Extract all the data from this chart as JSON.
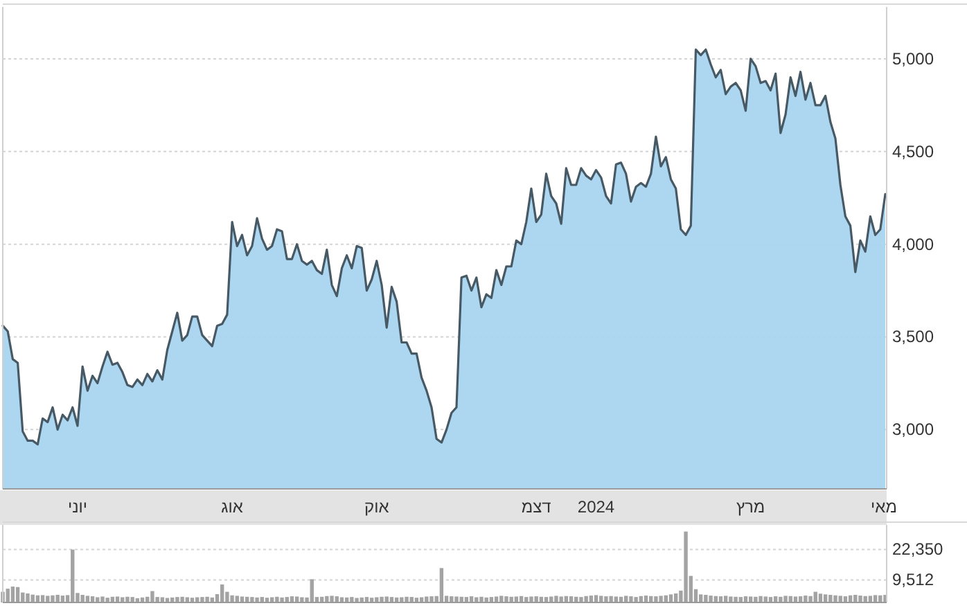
{
  "chart_data": [
    {
      "type": "area",
      "ylim": [
        2680,
        5280
      ],
      "yticks": [
        {
          "value": 3000,
          "label": "3,000"
        },
        {
          "value": 3500,
          "label": "3,500"
        },
        {
          "value": 4000,
          "label": "4,000"
        },
        {
          "value": 4500,
          "label": "4,500"
        },
        {
          "value": 5000,
          "label": "5,000"
        }
      ],
      "categories": [
        null,
        null,
        null,
        null,
        null,
        null,
        null,
        null,
        null,
        null,
        null,
        null,
        null,
        null,
        null,
        "יוני",
        null,
        null,
        null,
        null,
        null,
        null,
        null,
        null,
        null,
        null,
        null,
        null,
        null,
        null,
        null,
        null,
        null,
        null,
        null,
        null,
        null,
        null,
        null,
        null,
        null,
        null,
        null,
        null,
        null,
        null,
        "אוג",
        null,
        null,
        null,
        null,
        null,
        null,
        null,
        null,
        null,
        null,
        null,
        null,
        null,
        null,
        null,
        null,
        null,
        null,
        null,
        null,
        null,
        null,
        null,
        null,
        null,
        null,
        null,
        null,
        "אוק",
        null,
        null,
        null,
        null,
        null,
        null,
        null,
        null,
        null,
        null,
        null,
        null,
        null,
        null,
        null,
        null,
        null,
        null,
        null,
        null,
        null,
        null,
        null,
        null,
        null,
        null,
        null,
        null,
        null,
        null,
        null,
        "דצמ",
        null,
        null,
        null,
        null,
        null,
        null,
        null,
        null,
        null,
        null,
        null,
        "2024",
        null,
        null,
        null,
        null,
        null,
        null,
        null,
        null,
        null,
        null,
        null,
        null,
        null,
        null,
        null,
        null,
        null,
        null,
        null,
        null,
        null,
        null,
        null,
        null,
        null,
        null,
        null,
        null,
        null,
        null,
        "מרץ",
        null,
        null,
        null,
        null,
        null,
        null,
        null,
        null,
        null,
        null,
        null,
        null,
        null,
        null,
        null,
        null,
        null,
        null,
        null,
        null,
        null,
        null,
        null,
        null,
        null,
        null,
        "מאי"
      ],
      "grid": "y",
      "series": [
        {
          "color": "#a9d5ef",
          "values": [
            3560,
            3530,
            3380,
            3360,
            2990,
            2940,
            2940,
            2920,
            3060,
            3040,
            3120,
            3000,
            3080,
            3050,
            3120,
            3020,
            3340,
            3210,
            3290,
            3250,
            3340,
            3420,
            3350,
            3360,
            3310,
            3240,
            3230,
            3270,
            3240,
            3300,
            3260,
            3320,
            3270,
            3430,
            3530,
            3630,
            3480,
            3510,
            3610,
            3610,
            3510,
            3480,
            3450,
            3560,
            3570,
            3620,
            4120,
            3990,
            4050,
            3940,
            3990,
            4140,
            4030,
            3970,
            3990,
            4080,
            4070,
            3920,
            3920,
            4000,
            3910,
            3890,
            3910,
            3860,
            3840,
            3970,
            3780,
            3720,
            3870,
            3940,
            3870,
            3990,
            3980,
            3750,
            3810,
            3910,
            3780,
            3550,
            3770,
            3690,
            3470,
            3470,
            3410,
            3410,
            3280,
            3210,
            3120,
            2950,
            2930,
            3000,
            3090,
            3120,
            3820,
            3830,
            3750,
            3820,
            3660,
            3730,
            3710,
            3860,
            3780,
            3880,
            3880,
            4020,
            4000,
            4120,
            4300,
            4120,
            4160,
            4380,
            4260,
            4220,
            4110,
            4410,
            4320,
            4320,
            4410,
            4370,
            4350,
            4400,
            4360,
            4260,
            4220,
            4430,
            4440,
            4380,
            4230,
            4310,
            4330,
            4310,
            4380,
            4580,
            4420,
            4470,
            4350,
            4300,
            4080,
            4050,
            4100,
            5050,
            5020,
            5050,
            4970,
            4900,
            4940,
            4810,
            4850,
            4870,
            4830,
            4720,
            5000,
            4960,
            4870,
            4880,
            4830,
            4920,
            4600,
            4700,
            4900,
            4800,
            4930,
            4780,
            4870,
            4750,
            4750,
            4800,
            4660,
            4570,
            4320,
            4150,
            4100,
            3850,
            4020,
            3960,
            4150,
            4050,
            4080,
            4270
          ]
        }
      ]
    },
    {
      "type": "bar",
      "ylim": [
        0,
        32700
      ],
      "yticks": [
        {
          "value": 9512,
          "label": "9,512"
        },
        {
          "value": 22350,
          "label": "22,350"
        }
      ],
      "grid": "y",
      "tick_labels": "y",
      "categories": [
        null,
        null,
        null,
        null,
        null,
        null,
        null,
        null,
        null,
        null,
        null,
        null,
        null,
        null,
        null,
        null,
        null,
        null,
        null,
        null,
        null,
        null,
        null,
        null,
        null,
        null,
        null,
        null,
        null,
        null,
        null,
        null,
        null,
        null,
        null,
        null,
        null,
        null,
        null,
        null,
        null,
        null,
        null,
        null,
        null,
        null,
        null,
        null,
        null,
        null,
        null,
        null,
        null,
        null,
        null,
        null,
        null,
        null,
        null,
        null,
        null,
        null,
        null,
        null,
        null,
        null,
        null,
        null,
        null,
        null,
        null,
        null,
        null,
        null,
        null,
        null,
        null,
        null,
        null,
        null,
        null,
        null,
        null,
        null,
        null,
        null,
        null,
        null,
        null,
        null,
        null,
        null,
        null,
        null,
        null,
        null,
        null,
        null,
        null,
        null,
        null,
        null,
        null,
        null,
        null,
        null,
        null,
        null,
        null,
        null,
        null,
        null,
        null,
        null,
        null,
        null,
        null,
        null,
        null,
        null,
        null,
        null,
        null,
        null,
        null,
        null,
        null,
        null,
        null,
        null,
        null,
        null,
        null,
        null,
        null,
        null,
        null,
        null,
        null,
        null,
        null,
        null,
        null,
        null,
        null,
        null,
        null,
        null,
        null,
        null,
        null,
        null,
        null,
        null,
        null,
        null,
        null,
        null,
        null,
        null,
        null,
        null,
        null,
        null,
        null,
        null,
        null,
        null,
        null,
        null,
        null,
        null,
        null,
        null,
        null,
        null,
        null,
        null
      ],
      "series": [
        {
          "color": "#a3a3a3",
          "values": [
            4500,
            5800,
            6700,
            6500,
            4200,
            3800,
            3300,
            3000,
            3100,
            2800,
            3000,
            3200,
            2900,
            3100,
            22300,
            4000,
            3200,
            2800,
            2600,
            2200,
            2500,
            2000,
            2400,
            2500,
            2200,
            2400,
            2300,
            1800,
            2100,
            2400,
            4800,
            2300,
            2200,
            1900,
            2100,
            2300,
            2400,
            2200,
            2000,
            2200,
            2300,
            2400,
            2100,
            3500,
            7600,
            4500,
            3000,
            2800,
            2500,
            2400,
            2300,
            2100,
            2300,
            2000,
            2200,
            2400,
            2100,
            2300,
            2600,
            2500,
            2200,
            2100,
            9800,
            2300,
            2400,
            2700,
            2800,
            2600,
            2200,
            2100,
            2300,
            1900,
            2100,
            2300,
            2000,
            2200,
            2400,
            2500,
            2300,
            2100,
            2200,
            2400,
            2300,
            2000,
            2200,
            2500,
            2600,
            2700,
            14500,
            2800,
            2600,
            2500,
            2400,
            2300,
            2600,
            2200,
            2400,
            2100,
            2300,
            2500,
            2800,
            2600,
            2400,
            2500,
            2700,
            2300,
            2500,
            2600,
            2400,
            2300,
            2500,
            2800,
            2500,
            2700,
            2600,
            2400,
            2300,
            2700,
            2900,
            3100,
            2800,
            2600,
            2700,
            2500,
            2400,
            2800,
            2600,
            2300,
            2700,
            2900,
            2700,
            2600,
            2800,
            3000,
            3400,
            3800,
            5000,
            29900,
            11200,
            5600,
            3400,
            3200,
            2900,
            2700,
            2600,
            2800,
            2500,
            2400,
            2300,
            2600,
            2500,
            2400,
            2700,
            2500,
            2300,
            2600,
            2400,
            2800,
            2700,
            2500,
            2600,
            2900,
            2700,
            4500,
            3700,
            3400,
            3200,
            3000,
            2800,
            2600,
            3000,
            3200,
            2900,
            2700,
            2800,
            3100,
            3000,
            3200
          ]
        }
      ]
    }
  ]
}
